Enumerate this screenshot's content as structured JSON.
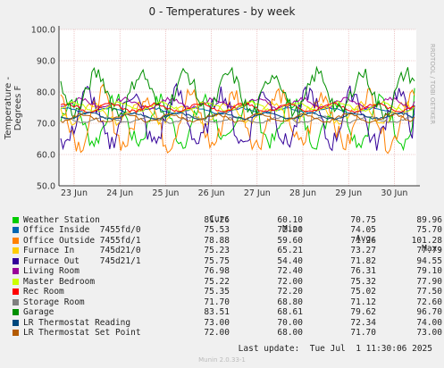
{
  "chart_data": {
    "type": "line",
    "title": "0 - Temperatures - by week",
    "ylabel": "Temperature - Degrees F",
    "ylim": [
      50,
      100
    ],
    "yticks": [
      "50.0",
      "60.0",
      "70.0",
      "80.0",
      "90.0",
      "100.0"
    ],
    "xticks": [
      "23 Jun",
      "24 Jun",
      "25 Jun",
      "26 Jun",
      "27 Jun",
      "28 Jun",
      "29 Jun",
      "30 Jun"
    ],
    "side_text": "RRDTOOL / TOBI OETIKER",
    "columns": [
      "Cur:",
      "Min:",
      "Avg:",
      "Max:"
    ],
    "series": [
      {
        "name": "Weather Station",
        "color": "#00cc00",
        "cur": "81.26",
        "min": "60.10",
        "avg": "70.75",
        "max": "89.96"
      },
      {
        "name": "Office Inside  7455fd/0",
        "color": "#0066b3",
        "cur": "75.53",
        "min": "72.20",
        "avg": "74.05",
        "max": "75.70"
      },
      {
        "name": "Office Outside 7455fd/1",
        "color": "#ff8000",
        "cur": "78.88",
        "min": "59.60",
        "avg": "71.26",
        "max": "101.28"
      },
      {
        "name": "Furnace In     745d21/0",
        "color": "#ffcc00",
        "cur": "75.23",
        "min": "65.21",
        "avg": "73.27",
        "max": "77.79"
      },
      {
        "name": "Furnace Out    745d21/1",
        "color": "#330099",
        "cur": "75.75",
        "min": "54.40",
        "avg": "71.82",
        "max": "94.55"
      },
      {
        "name": "Living Room",
        "color": "#990099",
        "cur": "76.98",
        "min": "72.40",
        "avg": "76.31",
        "max": "79.10"
      },
      {
        "name": "Master Bedroom",
        "color": "#ccff00",
        "cur": "75.22",
        "min": "72.00",
        "avg": "75.32",
        "max": "77.90"
      },
      {
        "name": "Rec Room",
        "color": "#ff0000",
        "cur": "75.35",
        "min": "72.20",
        "avg": "75.02",
        "max": "77.50"
      },
      {
        "name": "Storage Room",
        "color": "#808080",
        "cur": "71.70",
        "min": "68.80",
        "avg": "71.12",
        "max": "72.60"
      },
      {
        "name": "Garage",
        "color": "#008f00",
        "cur": "83.51",
        "min": "68.61",
        "avg": "79.62",
        "max": "96.70"
      },
      {
        "name": "LR Thermostat Reading",
        "color": "#00487d",
        "cur": "73.00",
        "min": "70.00",
        "avg": "72.34",
        "max": "74.00"
      },
      {
        "name": "LR Thermostat Set Point",
        "color": "#b35a00",
        "cur": "72.00",
        "min": "68.00",
        "avg": "71.70",
        "max": "73.00"
      }
    ]
  },
  "footer": "Last update:  Tue Jul  1 11:30:06 2025",
  "generator": "Munin 2.0.33-1"
}
